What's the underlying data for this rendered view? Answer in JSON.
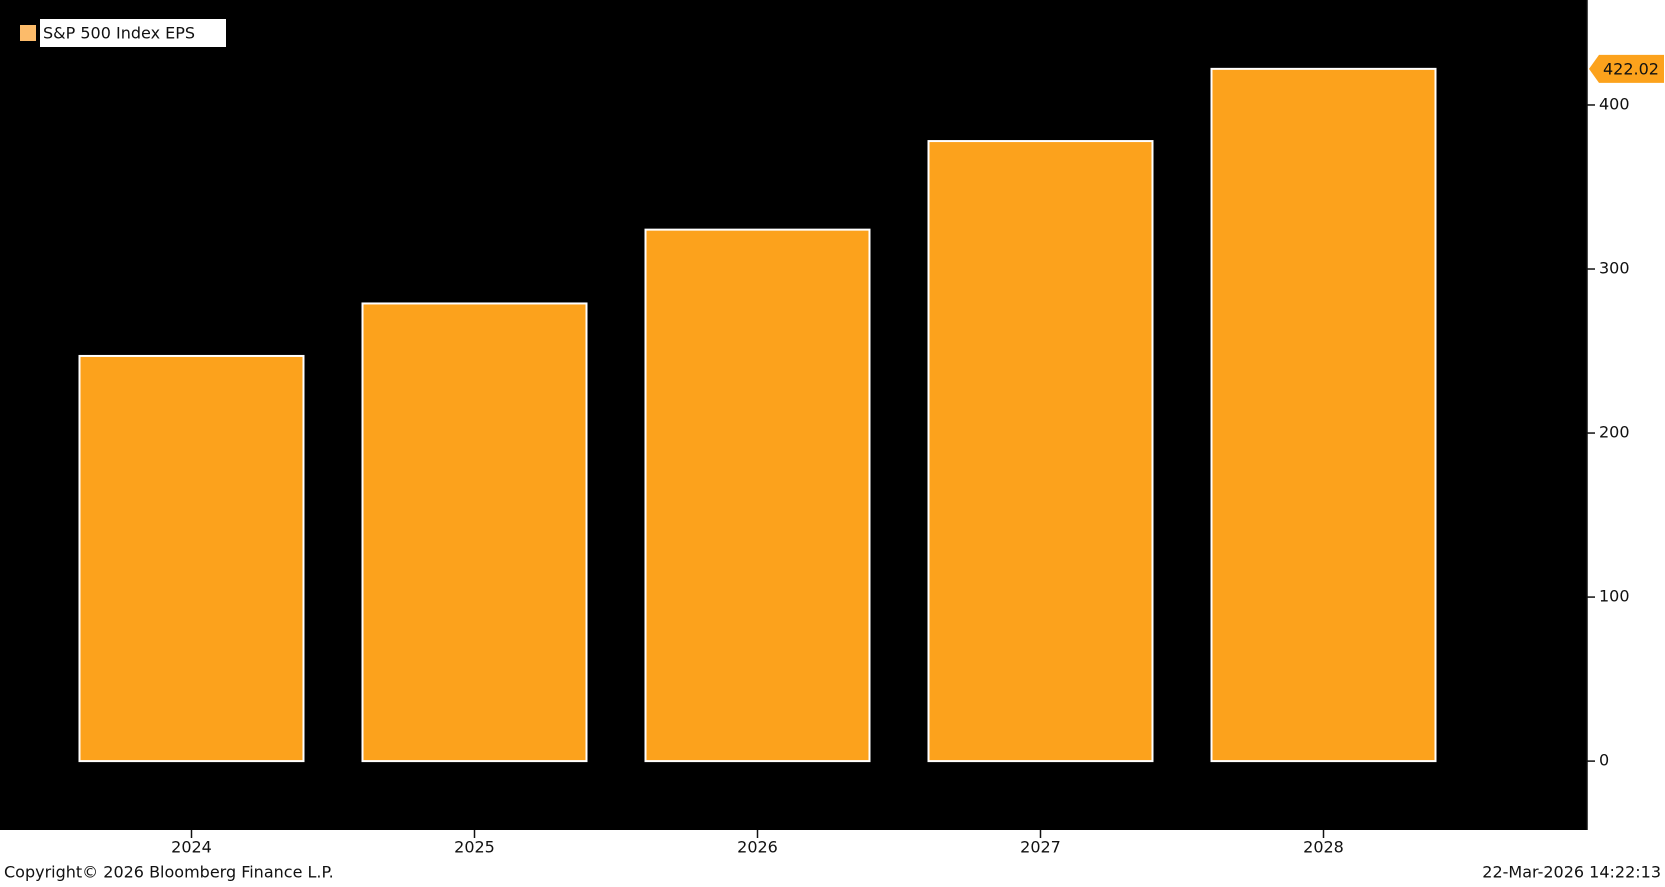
{
  "chart_data": {
    "type": "bar",
    "legend_label": "S&P 500 Index EPS",
    "categories": [
      "2024",
      "2025",
      "2026",
      "2027",
      "2028"
    ],
    "values": [
      247,
      279,
      324,
      378,
      422.02
    ],
    "color": "#fca21c",
    "ylim": [
      -42,
      464
    ],
    "yticks": [
      0,
      100,
      200,
      300,
      400
    ],
    "footer_left": "Copyright© 2026 Bloomberg Finance L.P.",
    "footer_right": "22-Mar-2026 14:22:13"
  }
}
